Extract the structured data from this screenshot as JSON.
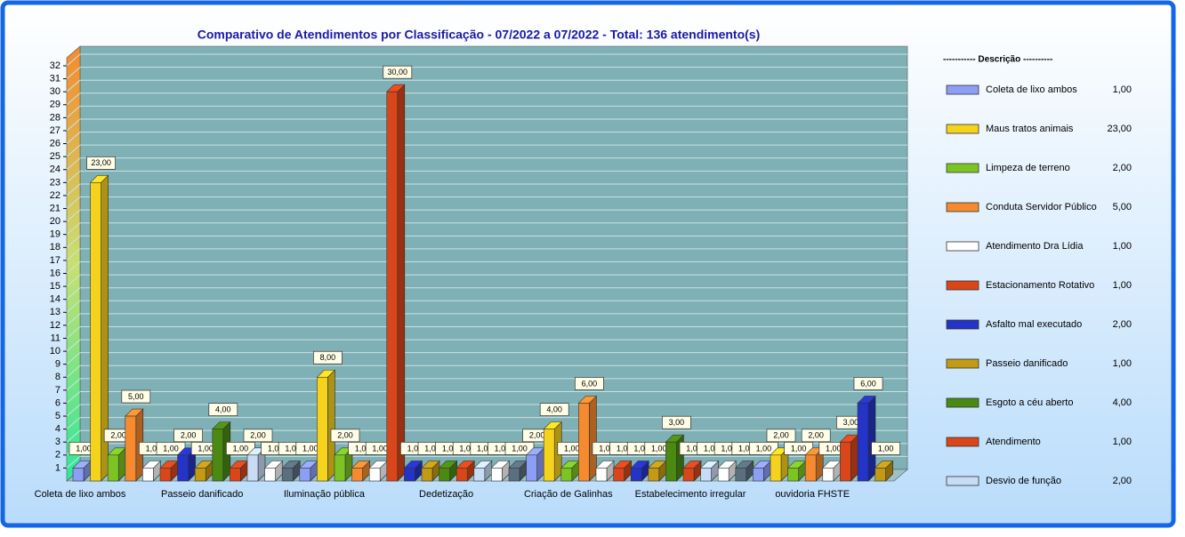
{
  "chart_data": {
    "type": "bar3d",
    "title": "Comparativo  de  Atendimentos  por  Classificação  - 07/2022  a  07/2022  -  Total:  136  atendimento(s)",
    "legend_title": "----------- Descrição ----------",
    "categories": [
      "Coleta de lixo ambos",
      "Maus tratos animais",
      "Limpeza de terreno",
      "Conduta Servidor Público",
      "Atendimento Dra Lídia",
      "Estacionamento Rotativo",
      "Asfalto mal executado",
      "Passeio danificado",
      "Esgoto a céu aberto",
      "Atendimento",
      "Desvio de função",
      null,
      null,
      null,
      "Iluminação pública",
      null,
      null,
      null,
      null,
      null,
      null,
      "Dedetização",
      null,
      null,
      null,
      null,
      null,
      null,
      "Criação de Galinhas",
      null,
      null,
      null,
      null,
      null,
      null,
      "Estabelecimento irregular",
      null,
      null,
      null,
      null,
      null,
      null,
      "ouvidoria FHSTE",
      null,
      null,
      null,
      null
    ],
    "values": [
      1,
      23,
      2,
      5,
      1,
      1,
      2,
      1,
      4,
      1,
      2,
      1,
      1,
      1,
      8,
      2,
      1,
      1,
      30,
      1,
      1,
      1,
      1,
      1,
      1,
      1,
      2,
      4,
      1,
      6,
      1,
      1,
      1,
      1,
      3,
      1,
      1,
      1,
      1,
      1,
      2,
      1,
      2,
      1,
      3,
      6,
      1
    ],
    "value_labels": [
      "1,00",
      "23,00",
      "2,00",
      "5,00",
      "1,00",
      "1,00",
      "2,00",
      "1,00",
      "4,00",
      "1,00",
      "2,00",
      "1,00",
      "1,00",
      "1,00",
      "8,00",
      "2,00",
      "1,00",
      "1,00",
      "30,00",
      "1,00",
      "1,00",
      "1,00",
      "1,00",
      "1,00",
      "1,00",
      "1,00",
      "2,00",
      "4,00",
      "1,00",
      "6,00",
      "1,00",
      "1,00",
      "1,00",
      "1,00",
      "3,00",
      "1,00",
      "1,00",
      "1,00",
      "1,00",
      "1,00",
      "2,00",
      "1,00",
      "2,00",
      "1,00",
      "3,00",
      "6,00",
      "1,00"
    ],
    "palette": [
      "#8d9ef5",
      "#f5d21c",
      "#7cc424",
      "#f58a2e",
      "#ffffff",
      "#d9461a",
      "#2433c8",
      "#c29a14",
      "#4a8a12",
      "#d9461a",
      "#c8dcf5",
      "#ffffff",
      "#5a7080"
    ],
    "legend_count": 11,
    "ylim": [
      0,
      32
    ],
    "yticks": [
      1,
      2,
      3,
      4,
      5,
      6,
      7,
      8,
      9,
      10,
      11,
      12,
      13,
      14,
      15,
      16,
      17,
      18,
      19,
      20,
      21,
      22,
      23,
      24,
      25,
      26,
      27,
      28,
      29,
      30,
      31,
      32
    ],
    "grid": true
  }
}
